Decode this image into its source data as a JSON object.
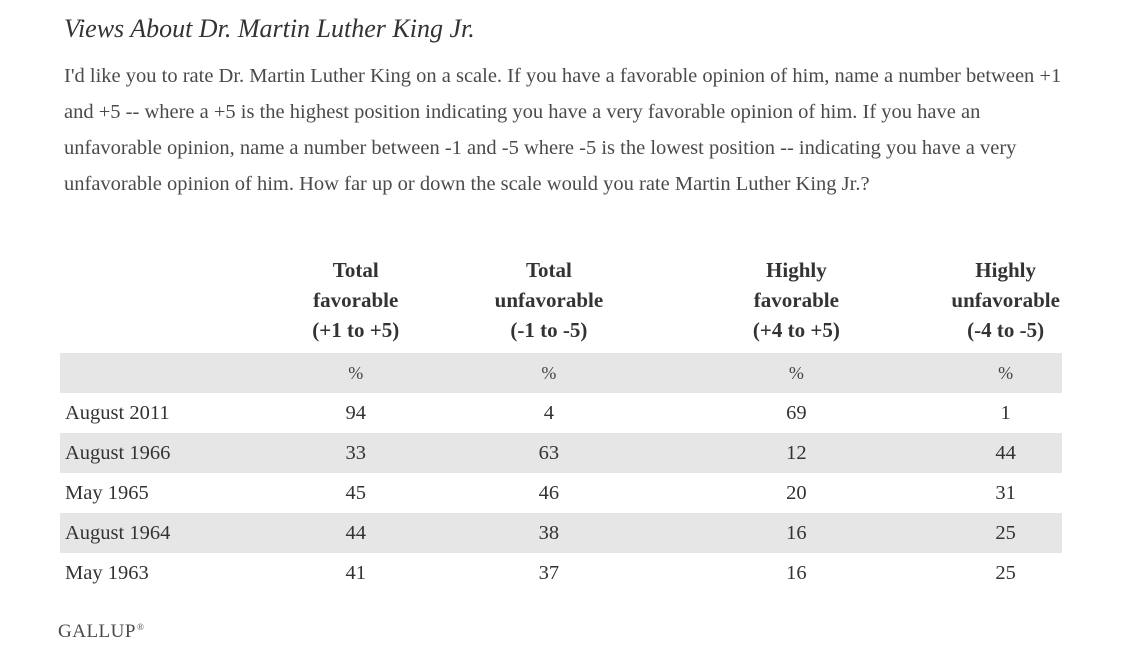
{
  "title": "Views About Dr. Martin Luther King Jr.",
  "question": "I'd like you to rate Dr. Martin Luther King on a scale. If you have a favorable opinion of him, name a number between +1 and +5 -- where a +5 is the highest position indicating you have a very favorable opinion of him. If you have an unfavorable opinion, name a number between -1 and -5 where -5 is the lowest position -- indicating you have a very unfavorable opinion of him. How far up or down the scale would you rate Martin Luther King Jr.?",
  "table": {
    "headers": [
      "Total\nfavorable\n(+1 to +5)",
      "Total\nunfavorable\n(-1 to -5)",
      "Highly\nfavorable\n(+4 to +5)",
      "Highly\nunfavorable\n(-4 to -5)"
    ],
    "units": [
      "%",
      "%",
      "%",
      "%"
    ],
    "rows": [
      {
        "label": "August 2011",
        "values": [
          "94",
          "4",
          "69",
          "1"
        ]
      },
      {
        "label": "August 1966",
        "values": [
          "33",
          "63",
          "12",
          "44"
        ]
      },
      {
        "label": "May 1965",
        "values": [
          "45",
          "46",
          "20",
          "31"
        ]
      },
      {
        "label": "August 1964",
        "values": [
          "44",
          "38",
          "16",
          "25"
        ]
      },
      {
        "label": "May 1963",
        "values": [
          "41",
          "37",
          "16",
          "25"
        ]
      }
    ]
  },
  "source": {
    "name": "GALLUP",
    "mark": "®"
  }
}
